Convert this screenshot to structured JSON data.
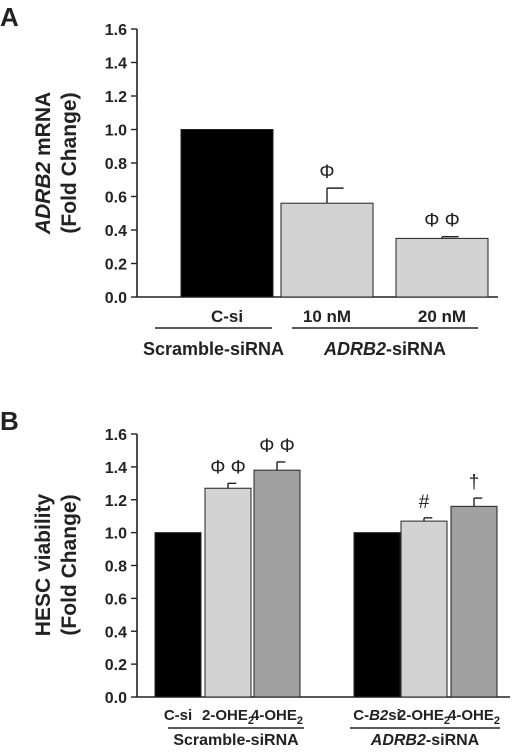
{
  "chart_data": [
    {
      "panel": "A",
      "type": "bar",
      "ylabel_lines": [
        "ADRB2 mRNA",
        "(Fold Change)"
      ],
      "ylabel_italic": "ADRB2",
      "ylim": [
        0,
        1.6
      ],
      "yticks": [
        "0.0",
        "0.2",
        "0.4",
        "0.6",
        "0.8",
        "1.0",
        "1.2",
        "1.4",
        "1.6"
      ],
      "categories": [
        "C-si",
        "10 nM",
        "20 nM"
      ],
      "values": [
        1.0,
        0.56,
        0.35
      ],
      "errors": [
        0,
        0.09,
        0.01
      ],
      "annotations": [
        "",
        "Φ",
        "Φ Φ"
      ],
      "colors": [
        "#000000",
        "#d3d3d3",
        "#d3d3d3"
      ],
      "groups": [
        {
          "label": "Scramble-siRNA",
          "italic": "",
          "suffix": "Scramble-siRNA",
          "members": [
            0
          ]
        },
        {
          "label": "ADRB2-siRNA",
          "italic": "ADRB2",
          "suffix": "-siRNA",
          "members": [
            1,
            2
          ]
        }
      ]
    },
    {
      "panel": "B",
      "type": "bar",
      "ylabel_lines": [
        "HESC viability",
        "(Fold Change)"
      ],
      "ylim": [
        0,
        1.6
      ],
      "yticks": [
        "0.0",
        "0.2",
        "0.4",
        "0.6",
        "0.8",
        "1.0",
        "1.2",
        "1.4",
        "1.6"
      ],
      "categories": [
        {
          "pre": "C-si",
          "sub": "",
          "post": ""
        },
        {
          "pre": "2-OHE",
          "sub": "2",
          "post": ""
        },
        {
          "pre": "4-OHE",
          "sub": "2",
          "post": ""
        },
        {
          "pre": "C-",
          "italic": "B2",
          "post": "si"
        },
        {
          "pre": "2-OHE",
          "sub": "2",
          "post": ""
        },
        {
          "pre": "4-OHE",
          "sub": "2",
          "post": ""
        }
      ],
      "values": [
        1.0,
        1.27,
        1.38,
        1.0,
        1.07,
        1.16
      ],
      "errors": [
        0,
        0.03,
        0.05,
        0,
        0.02,
        0.05
      ],
      "annotations": [
        "",
        "Φ Φ",
        "Φ Φ",
        "",
        "#",
        "†"
      ],
      "colors": [
        "#000000",
        "#d3d3d3",
        "#a0a0a0",
        "#000000",
        "#d3d3d3",
        "#a0a0a0"
      ],
      "groups": [
        {
          "label": "Scramble-siRNA",
          "italic": "",
          "suffix": "Scramble-siRNA",
          "members": [
            0,
            1,
            2
          ]
        },
        {
          "label": "ADRB2-siRNA",
          "italic": "ADRB2",
          "suffix": "-siRNA",
          "members": [
            3,
            4,
            5
          ]
        }
      ]
    }
  ]
}
